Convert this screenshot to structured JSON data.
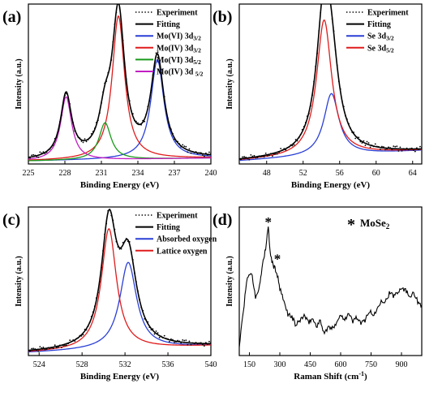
{
  "chart_data": [
    {
      "type": "line",
      "panel_label": "(a)",
      "xlabel": "Binding Energy (eV)",
      "ylabel": "Intensity (a.u.)",
      "xlim": [
        225,
        240
      ],
      "ylim": [
        0,
        1.08
      ],
      "xticks": [
        225,
        228,
        231,
        234,
        237,
        240
      ],
      "legend_position": "top-right",
      "series": [
        {
          "name": "Experiment",
          "style": "dotted",
          "color": "#000000",
          "peaks": [
            [
              228.1,
              0.43,
              0.55
            ],
            [
              231.3,
              0.25,
              0.6
            ],
            [
              232.4,
              0.97,
              0.62
            ],
            [
              235.6,
              0.67,
              0.65
            ]
          ],
          "baseline": [
            0.02,
            0.04
          ]
        },
        {
          "name": "Fitting",
          "style": "solid",
          "color": "#000000",
          "peaks": [
            [
              228.1,
              0.43,
              0.55
            ],
            [
              231.3,
              0.25,
              0.6
            ],
            [
              232.4,
              0.97,
              0.62
            ],
            [
              235.6,
              0.67,
              0.65
            ]
          ],
          "baseline": [
            0.02,
            0.04
          ]
        },
        {
          "name": "Mo(VI) 3d3/2",
          "label_main": "Mo(VI) 3d",
          "label_sub": "3/2",
          "color": "#2a3fd6",
          "peaks": [
            [
              235.6,
              0.67,
              0.65
            ]
          ],
          "baseline": [
            0.02,
            0.04
          ]
        },
        {
          "name": "Mo(IV) 3d3/2",
          "label_main": "Mo(IV) 3d",
          "label_sub": "3/2",
          "color": "#e01b1b",
          "peaks": [
            [
              232.4,
              0.97,
              0.62
            ]
          ],
          "baseline": [
            0.02,
            0.04
          ]
        },
        {
          "name": "Mo(VI) 3d5/2",
          "label_main": "Mo(VI) 3d",
          "label_sub": "5/2",
          "color": "#1a9a1a",
          "peaks": [
            [
              231.3,
              0.25,
              0.6
            ]
          ],
          "baseline": [
            0.02,
            0.04
          ]
        },
        {
          "name": "Mo(IV) 3d 5/2",
          "label_main": "Mo(IV) 3d ",
          "label_sub": "5/2",
          "color": "#c21fc2",
          "peaks": [
            [
              228.1,
              0.43,
              0.55
            ]
          ],
          "baseline": [
            0.02,
            0.04
          ]
        }
      ]
    },
    {
      "type": "line",
      "panel_label": "(b)",
      "xlabel": "Binding Energy (eV)",
      "ylabel": "Intensity (a.u.)",
      "xlim": [
        45,
        65
      ],
      "ylim": [
        0,
        1.08
      ],
      "xticks": [
        48,
        52,
        56,
        60,
        64
      ],
      "legend_position": "top-right",
      "series": [
        {
          "name": "Experiment",
          "style": "dotted",
          "color": "#000000",
          "peaks": [
            [
              54.3,
              0.92,
              1.0
            ],
            [
              55.1,
              0.42,
              1.0
            ]
          ],
          "baseline": [
            0.02,
            0.09
          ]
        },
        {
          "name": "Fitting",
          "style": "solid",
          "color": "#000000",
          "peaks": [
            [
              54.3,
              0.92,
              1.0
            ],
            [
              55.1,
              0.42,
              1.0
            ]
          ],
          "baseline": [
            0.02,
            0.09
          ]
        },
        {
          "name": "Se 3d3/2",
          "label_main": "Se 3d",
          "label_sub": "3/2",
          "color": "#2a3fd6",
          "peaks": [
            [
              55.1,
              0.42,
              1.0
            ]
          ],
          "baseline": [
            0.02,
            0.09
          ]
        },
        {
          "name": "Se 3d5/2",
          "label_main": "Se 3d",
          "label_sub": "5/2",
          "color": "#e01b1b",
          "peaks": [
            [
              54.3,
              0.92,
              1.0
            ]
          ],
          "baseline": [
            0.02,
            0.09
          ]
        }
      ]
    },
    {
      "type": "line",
      "panel_label": "(c)",
      "xlabel": "Binding Energy (eV)",
      "ylabel": "Intensity (a.u.)",
      "xlim": [
        523,
        540
      ],
      "ylim": [
        0,
        1.08
      ],
      "xticks": [
        524,
        528,
        532,
        536,
        540
      ],
      "legend_position": "top-right",
      "series": [
        {
          "name": "Experiment",
          "style": "dotted",
          "color": "#000000",
          "peaks": [
            [
              530.5,
              0.88,
              0.85
            ],
            [
              532.3,
              0.63,
              0.95
            ]
          ],
          "baseline": [
            0.02,
            0.07
          ]
        },
        {
          "name": "Fitting",
          "style": "solid",
          "color": "#000000",
          "peaks": [
            [
              530.5,
              0.88,
              0.85
            ],
            [
              532.3,
              0.63,
              0.95
            ]
          ],
          "baseline": [
            0.02,
            0.07
          ]
        },
        {
          "name": "Absorbed oxygen",
          "color": "#2a3fd6",
          "peaks": [
            [
              532.3,
              0.63,
              0.95
            ]
          ],
          "baseline": [
            0.02,
            0.07
          ]
        },
        {
          "name": "Lattice oxygen",
          "color": "#e01b1b",
          "peaks": [
            [
              530.5,
              0.88,
              0.85
            ]
          ],
          "baseline": [
            0.02,
            0.07
          ]
        }
      ]
    },
    {
      "type": "line",
      "panel_label": "(d)",
      "xlabel_main": "Raman Shift (cm",
      "xlabel_sup": "-1",
      "xlabel_end": ")",
      "ylabel": "Intensity (a.u.)",
      "xlim": [
        100,
        1000
      ],
      "ylim": [
        0,
        1
      ],
      "xticks": [
        150,
        300,
        450,
        600,
        750,
        900
      ],
      "legend_marker": "*",
      "legend_main": "MoSe",
      "legend_sub": "2",
      "peak_markers": [
        {
          "x": 243,
          "y": 0.87,
          "symbol": "*"
        },
        {
          "x": 288,
          "y": 0.62,
          "symbol": "*"
        }
      ],
      "series": [
        {
          "name": "MoSe2",
          "color": "#000000",
          "x": [
            100,
            120,
            140,
            160,
            180,
            200,
            215,
            230,
            243,
            255,
            270,
            285,
            300,
            320,
            340,
            360,
            380,
            400,
            420,
            440,
            460,
            480,
            500,
            520,
            540,
            560,
            580,
            600,
            620,
            640,
            660,
            680,
            700,
            720,
            740,
            760,
            780,
            800,
            820,
            840,
            860,
            880,
            900,
            920,
            940,
            960,
            980,
            1000
          ],
          "y": [
            0.06,
            0.3,
            0.53,
            0.56,
            0.4,
            0.46,
            0.62,
            0.72,
            0.86,
            0.66,
            0.6,
            0.56,
            0.45,
            0.36,
            0.28,
            0.26,
            0.2,
            0.24,
            0.27,
            0.22,
            0.25,
            0.2,
            0.23,
            0.15,
            0.19,
            0.18,
            0.23,
            0.27,
            0.25,
            0.28,
            0.23,
            0.26,
            0.21,
            0.24,
            0.3,
            0.27,
            0.31,
            0.38,
            0.36,
            0.42,
            0.4,
            0.43,
            0.46,
            0.44,
            0.4,
            0.43,
            0.36,
            0.34
          ]
        }
      ]
    }
  ]
}
